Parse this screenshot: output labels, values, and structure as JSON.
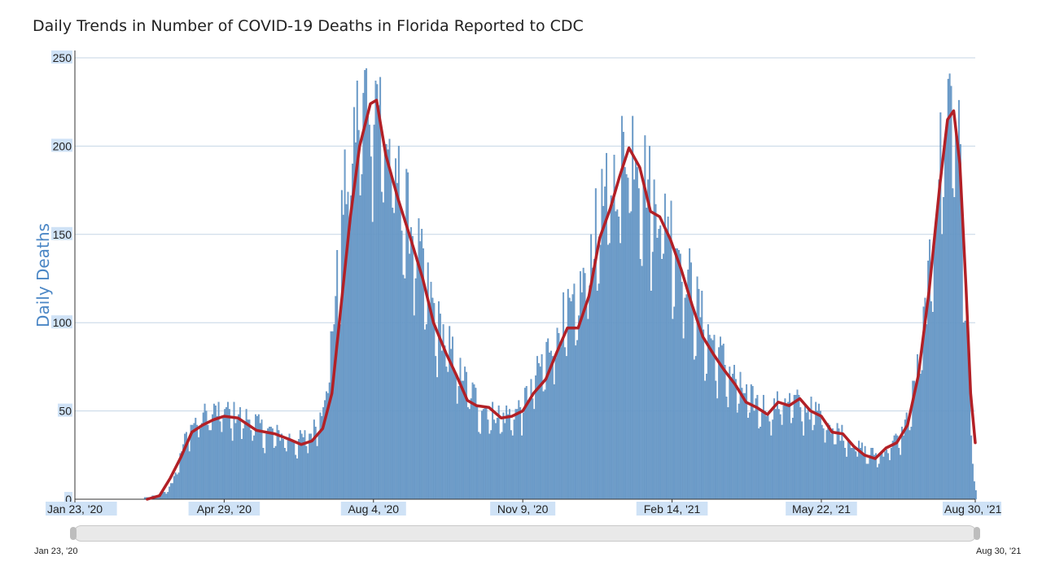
{
  "title": "Daily Trends in Number of COVID-19 Deaths in Florida Reported to CDC",
  "range_selector": {
    "start_label": "Jan 23, '20",
    "end_label": "Aug 30, '21"
  },
  "chart_data": {
    "type": "bar",
    "title": "Daily Trends in Number of COVID-19 Deaths in Florida Reported to CDC",
    "ylabel": "Daily Deaths",
    "xlabel": "",
    "ylim": [
      0,
      250
    ],
    "yticks": [
      0,
      50,
      100,
      150,
      200,
      250
    ],
    "x_start": "2020-01-23",
    "x_end": "2021-08-30",
    "xticks": [
      {
        "date": "2020-01-23",
        "label": "Jan 23, '20"
      },
      {
        "date": "2020-04-29",
        "label": "Apr 29, '20"
      },
      {
        "date": "2020-08-04",
        "label": "Aug 4, '20"
      },
      {
        "date": "2020-11-09",
        "label": "Nov 9, '20"
      },
      {
        "date": "2021-02-14",
        "label": "Feb 14, '21"
      },
      {
        "date": "2021-05-22",
        "label": "May 22, '21"
      },
      {
        "date": "2021-08-30",
        "label": "Aug 30, '21"
      }
    ],
    "grid": true,
    "colors": {
      "bars": "#6f9fcc",
      "bars_edge": "#4f82b5",
      "moving_average": "#b22026",
      "grid": "#c5d6e6"
    },
    "series": [
      {
        "kind": "bar",
        "note": "daily deaths, piecewise values sampled by date",
        "points": [
          [
            "2020-01-23",
            0
          ],
          [
            "2020-03-05",
            0
          ],
          [
            "2020-03-10",
            1
          ],
          [
            "2020-03-20",
            3
          ],
          [
            "2020-03-25",
            8
          ],
          [
            "2020-03-30",
            20
          ],
          [
            "2020-04-05",
            38
          ],
          [
            "2020-04-10",
            42
          ],
          [
            "2020-04-15",
            46
          ],
          [
            "2020-04-25",
            48
          ],
          [
            "2020-05-05",
            47
          ],
          [
            "2020-05-15",
            44
          ],
          [
            "2020-05-25",
            38
          ],
          [
            "2020-06-05",
            35
          ],
          [
            "2020-06-15",
            32
          ],
          [
            "2020-06-25",
            36
          ],
          [
            "2020-07-01",
            50
          ],
          [
            "2020-07-05",
            70
          ],
          [
            "2020-07-10",
            110
          ],
          [
            "2020-07-15",
            160
          ],
          [
            "2020-07-20",
            190
          ],
          [
            "2020-07-25",
            212
          ],
          [
            "2020-08-01",
            225
          ],
          [
            "2020-08-06",
            226
          ],
          [
            "2020-08-12",
            195
          ],
          [
            "2020-08-20",
            172
          ],
          [
            "2020-08-28",
            150
          ],
          [
            "2020-09-05",
            125
          ],
          [
            "2020-09-12",
            102
          ],
          [
            "2020-09-20",
            86
          ],
          [
            "2020-09-28",
            72
          ],
          [
            "2020-10-05",
            60
          ],
          [
            "2020-10-12",
            52
          ],
          [
            "2020-10-20",
            47
          ],
          [
            "2020-10-28",
            46
          ],
          [
            "2020-11-05",
            48
          ],
          [
            "2020-11-12",
            58
          ],
          [
            "2020-11-20",
            72
          ],
          [
            "2020-11-28",
            88
          ],
          [
            "2020-12-05",
            98
          ],
          [
            "2020-12-12",
            102
          ],
          [
            "2020-12-20",
            125
          ],
          [
            "2020-12-28",
            155
          ],
          [
            "2021-01-05",
            170
          ],
          [
            "2021-01-12",
            188
          ],
          [
            "2021-01-18",
            200
          ],
          [
            "2021-01-25",
            185
          ],
          [
            "2021-02-01",
            165
          ],
          [
            "2021-02-08",
            160
          ],
          [
            "2021-02-15",
            145
          ],
          [
            "2021-02-22",
            128
          ],
          [
            "2021-03-01",
            110
          ],
          [
            "2021-03-08",
            92
          ],
          [
            "2021-03-15",
            82
          ],
          [
            "2021-03-22",
            72
          ],
          [
            "2021-03-29",
            62
          ],
          [
            "2021-04-05",
            55
          ],
          [
            "2021-04-12",
            52
          ],
          [
            "2021-04-20",
            50
          ],
          [
            "2021-04-28",
            55
          ],
          [
            "2021-05-05",
            53
          ],
          [
            "2021-05-12",
            50
          ],
          [
            "2021-05-20",
            48
          ],
          [
            "2021-05-28",
            40
          ],
          [
            "2021-06-05",
            36
          ],
          [
            "2021-06-12",
            30
          ],
          [
            "2021-06-20",
            26
          ],
          [
            "2021-06-28",
            24
          ],
          [
            "2021-07-05",
            30
          ],
          [
            "2021-07-12",
            34
          ],
          [
            "2021-07-18",
            48
          ],
          [
            "2021-07-25",
            80
          ],
          [
            "2021-08-01",
            130
          ],
          [
            "2021-08-06",
            180
          ],
          [
            "2021-08-10",
            210
          ],
          [
            "2021-08-14",
            228
          ],
          [
            "2021-08-17",
            215
          ],
          [
            "2021-08-20",
            180
          ],
          [
            "2021-08-23",
            120
          ],
          [
            "2021-08-26",
            60
          ],
          [
            "2021-08-28",
            20
          ],
          [
            "2021-08-30",
            5
          ]
        ]
      },
      {
        "kind": "line",
        "note": "7-day moving average",
        "points": [
          [
            "2020-03-10",
            0
          ],
          [
            "2020-03-18",
            2
          ],
          [
            "2020-03-25",
            12
          ],
          [
            "2020-04-01",
            24
          ],
          [
            "2020-04-08",
            38
          ],
          [
            "2020-04-15",
            42
          ],
          [
            "2020-04-22",
            45
          ],
          [
            "2020-04-29",
            47
          ],
          [
            "2020-05-08",
            46
          ],
          [
            "2020-05-20",
            39
          ],
          [
            "2020-06-01",
            37
          ],
          [
            "2020-06-10",
            34
          ],
          [
            "2020-06-18",
            31
          ],
          [
            "2020-06-25",
            33
          ],
          [
            "2020-07-02",
            40
          ],
          [
            "2020-07-08",
            60
          ],
          [
            "2020-07-14",
            110
          ],
          [
            "2020-07-20",
            160
          ],
          [
            "2020-07-26",
            200
          ],
          [
            "2020-08-02",
            224
          ],
          [
            "2020-08-06",
            226
          ],
          [
            "2020-08-12",
            195
          ],
          [
            "2020-08-20",
            170
          ],
          [
            "2020-08-28",
            148
          ],
          [
            "2020-09-05",
            125
          ],
          [
            "2020-09-12",
            100
          ],
          [
            "2020-09-20",
            83
          ],
          [
            "2020-09-27",
            70
          ],
          [
            "2020-10-04",
            56
          ],
          [
            "2020-10-10",
            53
          ],
          [
            "2020-10-18",
            52
          ],
          [
            "2020-10-26",
            46
          ],
          [
            "2020-11-02",
            47
          ],
          [
            "2020-11-09",
            50
          ],
          [
            "2020-11-16",
            60
          ],
          [
            "2020-11-24",
            68
          ],
          [
            "2020-12-01",
            83
          ],
          [
            "2020-12-08",
            97
          ],
          [
            "2020-12-15",
            97
          ],
          [
            "2020-12-22",
            115
          ],
          [
            "2020-12-29",
            148
          ],
          [
            "2021-01-05",
            165
          ],
          [
            "2021-01-11",
            183
          ],
          [
            "2021-01-17",
            199
          ],
          [
            "2021-01-24",
            188
          ],
          [
            "2021-01-31",
            163
          ],
          [
            "2021-02-06",
            160
          ],
          [
            "2021-02-13",
            147
          ],
          [
            "2021-02-20",
            130
          ],
          [
            "2021-02-27",
            110
          ],
          [
            "2021-03-06",
            92
          ],
          [
            "2021-03-13",
            82
          ],
          [
            "2021-03-20",
            73
          ],
          [
            "2021-03-27",
            65
          ],
          [
            "2021-04-03",
            55
          ],
          [
            "2021-04-10",
            52
          ],
          [
            "2021-04-17",
            48
          ],
          [
            "2021-04-24",
            55
          ],
          [
            "2021-05-01",
            53
          ],
          [
            "2021-05-08",
            57
          ],
          [
            "2021-05-15",
            50
          ],
          [
            "2021-05-22",
            47
          ],
          [
            "2021-05-29",
            38
          ],
          [
            "2021-06-05",
            37
          ],
          [
            "2021-06-12",
            30
          ],
          [
            "2021-06-19",
            25
          ],
          [
            "2021-06-26",
            23
          ],
          [
            "2021-07-03",
            29
          ],
          [
            "2021-07-10",
            32
          ],
          [
            "2021-07-17",
            42
          ],
          [
            "2021-07-24",
            70
          ],
          [
            "2021-07-31",
            118
          ],
          [
            "2021-08-07",
            178
          ],
          [
            "2021-08-12",
            215
          ],
          [
            "2021-08-16",
            220
          ],
          [
            "2021-08-20",
            190
          ],
          [
            "2021-08-24",
            120
          ],
          [
            "2021-08-27",
            60
          ],
          [
            "2021-08-30",
            32
          ]
        ]
      }
    ]
  }
}
